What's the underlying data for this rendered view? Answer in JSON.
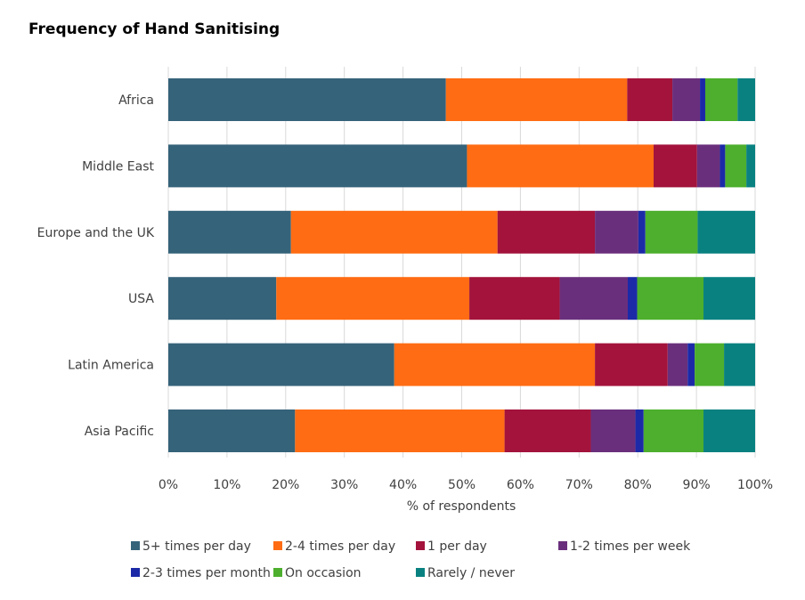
{
  "chart_data": {
    "type": "bar",
    "orientation": "horizontal",
    "stacked": true,
    "title": "Frequency of Hand Sanitising",
    "xlabel": "% of respondents",
    "ylabel": "",
    "xlim": [
      0,
      100
    ],
    "x_ticks": [
      "0%",
      "10%",
      "20%",
      "30%",
      "40%",
      "50%",
      "60%",
      "70%",
      "80%",
      "90%",
      "100%"
    ],
    "grid": "vertical",
    "legend_position": "bottom",
    "categories": [
      "Africa",
      "Middle East",
      "Europe and the UK",
      "USA",
      "Latin America",
      "Asia Pacific"
    ],
    "series": [
      {
        "name": "5+ times per day",
        "color": "#35637A",
        "values": [
          47.3,
          50.9,
          20.9,
          18.4,
          38.5,
          21.6
        ]
      },
      {
        "name": "2-4 times per day",
        "color": "#FF6C13",
        "values": [
          30.9,
          31.8,
          35.2,
          32.9,
          34.2,
          35.7
        ]
      },
      {
        "name": "1 per day",
        "color": "#A3133C",
        "values": [
          7.7,
          7.4,
          16.6,
          15.4,
          12.4,
          14.7
        ]
      },
      {
        "name": "1-2 times per week",
        "color": "#6A2F7C",
        "values": [
          4.7,
          3.9,
          7.4,
          11.6,
          3.4,
          7.6
        ]
      },
      {
        "name": "2-3 times per month",
        "color": "#1C2AA8",
        "values": [
          0.9,
          0.9,
          1.2,
          1.6,
          1.2,
          1.4
        ]
      },
      {
        "name": "On occasion",
        "color": "#4DAF2D",
        "values": [
          5.5,
          3.6,
          8.9,
          11.3,
          5.0,
          10.2
        ]
      },
      {
        "name": "Rarely / never",
        "color": "#0A8181",
        "values": [
          3.0,
          1.5,
          9.8,
          8.8,
          5.3,
          8.8
        ]
      }
    ]
  }
}
